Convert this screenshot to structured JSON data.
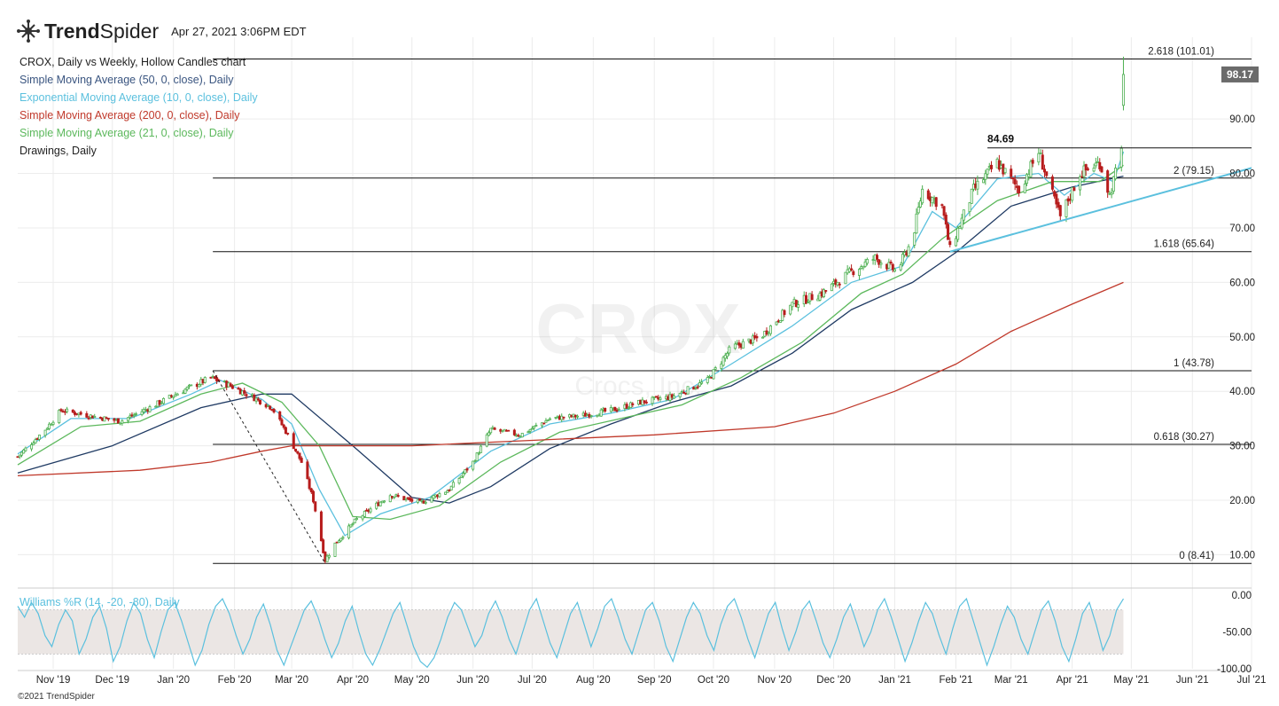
{
  "header": {
    "brand_bold": "Trend",
    "brand_light": "Spider",
    "datetime": "Apr 27, 2021 3:06PM EDT",
    "logo_icon": "trendspider-logo-icon"
  },
  "legend": [
    {
      "label": "CROX, Daily vs Weekly, Hollow Candles chart",
      "color": "#222222"
    },
    {
      "label": "Simple Moving Average (50, 0, close), Daily",
      "color": "#3a5580"
    },
    {
      "label": "Exponential Moving Average (10, 0, close), Daily",
      "color": "#5bc0de"
    },
    {
      "label": "Simple Moving Average (200, 0, close), Daily",
      "color": "#c0392b"
    },
    {
      "label": "Simple Moving Average (21, 0, close), Daily",
      "color": "#5cb85c"
    },
    {
      "label": "Drawings, Daily",
      "color": "#222222"
    }
  ],
  "watermark": {
    "symbol": "CROX",
    "name": "Crocs, Inc."
  },
  "copyright": "©2021 TrendSpider",
  "colors": {
    "up": "#4caf50",
    "down": "#b71c1c",
    "sma50": "#1f3a63",
    "ema10": "#5bc0de",
    "sma200": "#c0392b",
    "sma21": "#5cb85c",
    "trendline": "#5bc0de",
    "wr": "#5bc0de",
    "tag": "#6b6b6b"
  },
  "chart_data": {
    "type": "candlestick",
    "symbol": "CROX",
    "x_range": [
      "2019-10-14",
      "2021-07-01"
    ],
    "y_range": [
      6.0,
      105.0
    ],
    "y_ticks": [
      "10.00",
      "20.00",
      "30.00",
      "40.00",
      "50.00",
      "60.00",
      "70.00",
      "80.00",
      "90.00"
    ],
    "x_ticks": [
      {
        "label": "Nov '19",
        "date": "2019-11-01"
      },
      {
        "label": "Dec '19",
        "date": "2019-12-01"
      },
      {
        "label": "Jan '20",
        "date": "2020-01-01"
      },
      {
        "label": "Feb '20",
        "date": "2020-02-01"
      },
      {
        "label": "Mar '20",
        "date": "2020-03-01"
      },
      {
        "label": "Apr '20",
        "date": "2020-04-01"
      },
      {
        "label": "May '20",
        "date": "2020-05-01"
      },
      {
        "label": "Jun '20",
        "date": "2020-06-01"
      },
      {
        "label": "Jul '20",
        "date": "2020-07-01"
      },
      {
        "label": "Aug '20",
        "date": "2020-08-01"
      },
      {
        "label": "Sep '20",
        "date": "2020-09-01"
      },
      {
        "label": "Oct '20",
        "date": "2020-10-01"
      },
      {
        "label": "Nov '20",
        "date": "2020-11-01"
      },
      {
        "label": "Dec '20",
        "date": "2020-12-01"
      },
      {
        "label": "Jan '21",
        "date": "2021-01-01"
      },
      {
        "label": "Feb '21",
        "date": "2021-02-01"
      },
      {
        "label": "Mar '21",
        "date": "2021-03-01"
      },
      {
        "label": "Apr '21",
        "date": "2021-04-01"
      },
      {
        "label": "May '21",
        "date": "2021-05-01"
      },
      {
        "label": "Jun '21",
        "date": "2021-06-01"
      },
      {
        "label": "Jul '21",
        "date": "2021-07-01"
      }
    ],
    "price_path": [
      [
        "2019-10-14",
        28.0
      ],
      [
        "2019-10-28",
        33.0
      ],
      [
        "2019-11-05",
        36.5
      ],
      [
        "2019-11-20",
        35.5
      ],
      [
        "2019-12-05",
        34.5
      ],
      [
        "2019-12-20",
        37.0
      ],
      [
        "2020-01-05",
        40.0
      ],
      [
        "2020-01-20",
        42.5
      ],
      [
        "2020-01-30",
        41.0
      ],
      [
        "2020-02-10",
        39.0
      ],
      [
        "2020-02-20",
        37.0
      ],
      [
        "2020-02-28",
        32.0
      ],
      [
        "2020-03-06",
        27.0
      ],
      [
        "2020-03-12",
        20.0
      ],
      [
        "2020-03-18",
        9.0
      ],
      [
        "2020-03-23",
        12.0
      ],
      [
        "2020-04-03",
        16.5
      ],
      [
        "2020-04-20",
        21.0
      ],
      [
        "2020-05-05",
        19.5
      ],
      [
        "2020-05-20",
        22.0
      ],
      [
        "2020-06-01",
        27.0
      ],
      [
        "2020-06-10",
        33.0
      ],
      [
        "2020-06-25",
        32.0
      ],
      [
        "2020-07-10",
        35.0
      ],
      [
        "2020-07-25",
        35.5
      ],
      [
        "2020-08-10",
        36.5
      ],
      [
        "2020-08-25",
        38.0
      ],
      [
        "2020-09-10",
        39.0
      ],
      [
        "2020-09-28",
        42.0
      ],
      [
        "2020-10-10",
        48.0
      ],
      [
        "2020-10-25",
        50.0
      ],
      [
        "2020-11-10",
        56.0
      ],
      [
        "2020-11-25",
        58.0
      ],
      [
        "2020-12-10",
        62.0
      ],
      [
        "2020-12-22",
        64.5
      ],
      [
        "2021-01-02",
        62.0
      ],
      [
        "2021-01-10",
        68.0
      ],
      [
        "2021-01-15",
        77.0
      ],
      [
        "2021-01-25",
        74.0
      ],
      [
        "2021-01-29",
        66.0
      ],
      [
        "2021-02-10",
        77.0
      ],
      [
        "2021-02-22",
        82.0
      ],
      [
        "2021-03-05",
        77.0
      ],
      [
        "2021-03-15",
        84.0
      ],
      [
        "2021-03-22",
        76.0
      ],
      [
        "2021-03-26",
        72.0
      ],
      [
        "2021-04-05",
        80.0
      ],
      [
        "2021-04-15",
        82.0
      ],
      [
        "2021-04-20",
        76.0
      ],
      [
        "2021-04-23",
        80.0
      ],
      [
        "2021-04-26",
        84.0
      ],
      [
        "2021-04-27",
        98.17
      ]
    ],
    "indicators": [
      {
        "name": "Simple Moving Average (50, 0, close), Daily",
        "color": "#1f3a63",
        "points": [
          [
            "2019-10-14",
            25.0
          ],
          [
            "2019-12-01",
            30.0
          ],
          [
            "2020-01-15",
            37.0
          ],
          [
            "2020-02-15",
            39.5
          ],
          [
            "2020-03-01",
            39.5
          ],
          [
            "2020-04-01",
            30.0
          ],
          [
            "2020-05-01",
            20.5
          ],
          [
            "2020-05-20",
            19.5
          ],
          [
            "2020-06-10",
            22.5
          ],
          [
            "2020-07-10",
            29.5
          ],
          [
            "2020-08-10",
            34.0
          ],
          [
            "2020-09-10",
            38.0
          ],
          [
            "2020-10-10",
            41.0
          ],
          [
            "2020-11-10",
            47.0
          ],
          [
            "2020-12-10",
            55.0
          ],
          [
            "2021-01-10",
            60.0
          ],
          [
            "2021-02-01",
            65.5
          ],
          [
            "2021-03-01",
            74.0
          ],
          [
            "2021-04-01",
            77.5
          ],
          [
            "2021-04-27",
            79.5
          ]
        ]
      },
      {
        "name": "Exponential Moving Average (10, 0, close), Daily",
        "color": "#5bc0de",
        "points": [
          [
            "2019-10-14",
            28.5
          ],
          [
            "2019-11-10",
            35.0
          ],
          [
            "2019-12-10",
            35.0
          ],
          [
            "2020-01-10",
            39.5
          ],
          [
            "2020-01-25",
            42.0
          ],
          [
            "2020-02-15",
            38.5
          ],
          [
            "2020-03-01",
            34.0
          ],
          [
            "2020-03-15",
            22.0
          ],
          [
            "2020-03-28",
            13.5
          ],
          [
            "2020-04-15",
            17.5
          ],
          [
            "2020-05-10",
            20.5
          ],
          [
            "2020-06-10",
            29.0
          ],
          [
            "2020-07-10",
            34.0
          ],
          [
            "2020-08-10",
            36.0
          ],
          [
            "2020-09-10",
            38.5
          ],
          [
            "2020-10-10",
            45.0
          ],
          [
            "2020-11-10",
            52.0
          ],
          [
            "2020-12-10",
            60.0
          ],
          [
            "2021-01-05",
            63.0
          ],
          [
            "2021-01-20",
            73.0
          ],
          [
            "2021-02-01",
            70.0
          ],
          [
            "2021-02-22",
            79.0
          ],
          [
            "2021-03-15",
            80.0
          ],
          [
            "2021-03-28",
            76.0
          ],
          [
            "2021-04-12",
            80.0
          ],
          [
            "2021-04-22",
            78.5
          ],
          [
            "2021-04-27",
            84.0
          ]
        ]
      },
      {
        "name": "Simple Moving Average (21, 0, close), Daily",
        "color": "#5cb85c",
        "points": [
          [
            "2019-10-14",
            26.5
          ],
          [
            "2019-11-15",
            33.5
          ],
          [
            "2019-12-15",
            34.5
          ],
          [
            "2020-01-15",
            39.5
          ],
          [
            "2020-02-05",
            41.5
          ],
          [
            "2020-02-25",
            38.0
          ],
          [
            "2020-03-15",
            30.0
          ],
          [
            "2020-04-01",
            17.0
          ],
          [
            "2020-04-20",
            16.5
          ],
          [
            "2020-05-15",
            19.0
          ],
          [
            "2020-06-15",
            27.0
          ],
          [
            "2020-07-15",
            32.5
          ],
          [
            "2020-08-15",
            35.0
          ],
          [
            "2020-09-15",
            37.5
          ],
          [
            "2020-10-15",
            42.5
          ],
          [
            "2020-11-15",
            49.0
          ],
          [
            "2020-12-15",
            58.0
          ],
          [
            "2021-01-05",
            61.5
          ],
          [
            "2021-01-25",
            68.0
          ],
          [
            "2021-02-22",
            75.0
          ],
          [
            "2021-03-22",
            78.5
          ],
          [
            "2021-04-15",
            78.5
          ],
          [
            "2021-04-27",
            81.5
          ]
        ]
      },
      {
        "name": "Simple Moving Average (200, 0, close), Daily",
        "color": "#c0392b",
        "points": [
          [
            "2019-10-14",
            24.5
          ],
          [
            "2019-12-15",
            25.5
          ],
          [
            "2020-01-20",
            27.0
          ],
          [
            "2020-02-15",
            29.0
          ],
          [
            "2020-03-01",
            30.0
          ],
          [
            "2020-05-01",
            30.0
          ],
          [
            "2020-07-01",
            31.0
          ],
          [
            "2020-09-01",
            32.0
          ],
          [
            "2020-11-01",
            33.5
          ],
          [
            "2020-12-01",
            36.0
          ],
          [
            "2021-01-01",
            40.0
          ],
          [
            "2021-02-01",
            45.0
          ],
          [
            "2021-03-01",
            51.0
          ],
          [
            "2021-04-01",
            56.0
          ],
          [
            "2021-04-27",
            60.0
          ]
        ]
      }
    ],
    "fib_levels": [
      {
        "label": "2.618 (101.01)",
        "value": 101.01
      },
      {
        "label": "2 (79.15)",
        "value": 79.15
      },
      {
        "label": "1.618 (65.64)",
        "value": 65.64
      },
      {
        "label": "1 (43.78)",
        "value": 43.78
      },
      {
        "label": "0.618 (30.27)",
        "value": 30.27
      },
      {
        "label": "0 (8.41)",
        "value": 8.41
      }
    ],
    "fib_start": "2020-01-21",
    "resistance": {
      "label": "84.69",
      "value": 84.69,
      "from": "2021-02-17",
      "to": "2021-07-01"
    },
    "trendline": {
      "from": [
        "2021-01-29",
        65.64
      ],
      "to": [
        "2021-07-01",
        81.0
      ]
    },
    "swing_line": {
      "from": [
        "2020-01-21",
        43.78
      ],
      "to": [
        "2020-03-18",
        8.41
      ]
    },
    "last_price": {
      "label": "98.17",
      "value": 98.17
    },
    "oscillator": {
      "name": "Williams %R (14, -20, -80), Daily",
      "y_range": [
        -100,
        0
      ],
      "y_ticks": [
        "0.00",
        "-50.00",
        "-100.00"
      ],
      "band": [
        -20,
        -80
      ],
      "values": [
        -15,
        -30,
        -10,
        -25,
        -55,
        -70,
        -40,
        -20,
        -35,
        -80,
        -60,
        -30,
        -15,
        -45,
        -90,
        -70,
        -35,
        -10,
        -25,
        -60,
        -85,
        -50,
        -20,
        -10,
        -35,
        -65,
        -95,
        -75,
        -40,
        -15,
        -5,
        -25,
        -55,
        -80,
        -60,
        -30,
        -12,
        -40,
        -75,
        -95,
        -70,
        -45,
        -20,
        -8,
        -30,
        -60,
        -85,
        -65,
        -35,
        -15,
        -50,
        -80,
        -95,
        -75,
        -50,
        -25,
        -10,
        -40,
        -70,
        -90,
        -98,
        -85,
        -60,
        -30,
        -10,
        -20,
        -45,
        -70,
        -55,
        -25,
        -8,
        -30,
        -60,
        -80,
        -50,
        -20,
        -5,
        -35,
        -65,
        -85,
        -55,
        -25,
        -10,
        -40,
        -70,
        -45,
        -15,
        -5,
        -30,
        -60,
        -80,
        -50,
        -20,
        -10,
        -35,
        -70,
        -90,
        -60,
        -30,
        -10,
        -25,
        -55,
        -75,
        -40,
        -15,
        -5,
        -30,
        -60,
        -85,
        -55,
        -25,
        -10,
        -45,
        -75,
        -50,
        -20,
        -8,
        -35,
        -65,
        -85,
        -60,
        -30,
        -12,
        -40,
        -70,
        -50,
        -20,
        -5,
        -30,
        -60,
        -90,
        -65,
        -35,
        -10,
        -25,
        -55,
        -80,
        -45,
        -15,
        -5,
        -35,
        -65,
        -95,
        -70,
        -40,
        -15,
        -30,
        -60,
        -80,
        -50,
        -20,
        -8,
        -35,
        -70,
        -90,
        -60,
        -25,
        -10,
        -40,
        -75,
        -55,
        -20,
        -5
      ]
    }
  }
}
